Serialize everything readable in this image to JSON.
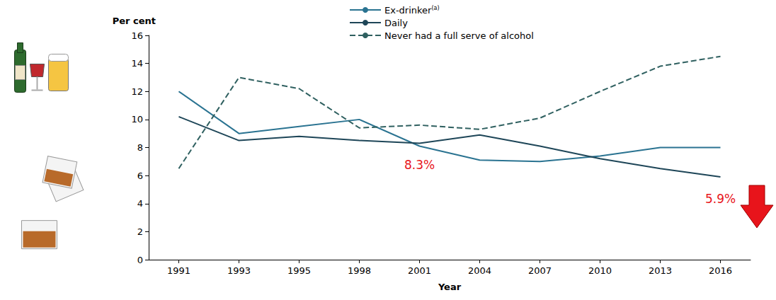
{
  "chart_data": {
    "type": "line",
    "y_label": "Per cent",
    "x_label": "Year",
    "categories": [
      "1991",
      "1993",
      "1995",
      "1998",
      "2001",
      "2004",
      "2007",
      "2010",
      "2013",
      "2016"
    ],
    "series": [
      {
        "name": "Ex-drinker (a)",
        "color": "#2a7391",
        "line_style": "solid",
        "marker": "none",
        "values": [
          12.0,
          9.0,
          9.5,
          10.0,
          8.1,
          7.1,
          7.0,
          7.4,
          8.0,
          8.0
        ]
      },
      {
        "name": "Daily",
        "color": "#1e4658",
        "line_style": "solid",
        "marker": "none",
        "values": [
          10.2,
          8.5,
          8.8,
          8.5,
          8.3,
          8.9,
          8.1,
          7.2,
          6.5,
          5.9
        ]
      },
      {
        "name": "Never had a full serve of alcohol",
        "color": "#2f6060",
        "line_style": "dashed",
        "marker": "none",
        "values": [
          6.5,
          13.0,
          12.2,
          9.4,
          9.6,
          9.3,
          10.1,
          12.0,
          13.8,
          14.5
        ]
      }
    ],
    "annotations": [
      {
        "text": "8.3%",
        "series": "Daily",
        "category": "2001",
        "color": "#e8141b"
      },
      {
        "text": "5.9%",
        "series": "Daily",
        "category": "2016",
        "color": "#e8141b"
      }
    ],
    "ylim": [
      0,
      16
    ],
    "yticks": [
      0,
      2,
      4,
      6,
      8,
      10,
      12,
      14,
      16
    ],
    "grid": false,
    "legend": "top"
  }
}
